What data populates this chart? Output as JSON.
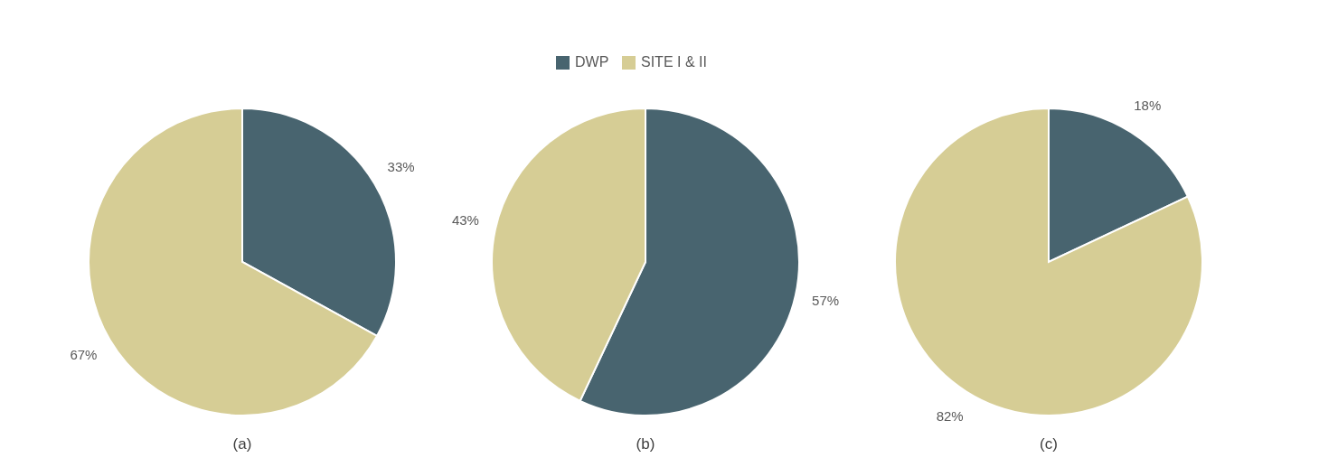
{
  "chart_data": [
    {
      "type": "pie",
      "xlabel": "(a)",
      "categories": [
        null,
        null
      ],
      "values": [
        33,
        67
      ],
      "colors": [
        "#48646f",
        "#d6cd95"
      ],
      "value_labels": [
        "33%",
        "67%"
      ]
    },
    {
      "type": "pie",
      "xlabel": "(b)",
      "categories": [
        "DWP",
        "SITE I & II"
      ],
      "values": [
        57,
        43
      ],
      "colors": [
        "#48646f",
        "#d6cd95"
      ],
      "value_labels": [
        "57%",
        "43%"
      ],
      "legend": "top"
    },
    {
      "type": "pie",
      "xlabel": "(c)",
      "categories": [
        null,
        null
      ],
      "values": [
        18,
        82
      ],
      "colors": [
        "#48646f",
        "#d6cd95"
      ],
      "value_labels": [
        "18%",
        "82%"
      ]
    }
  ]
}
